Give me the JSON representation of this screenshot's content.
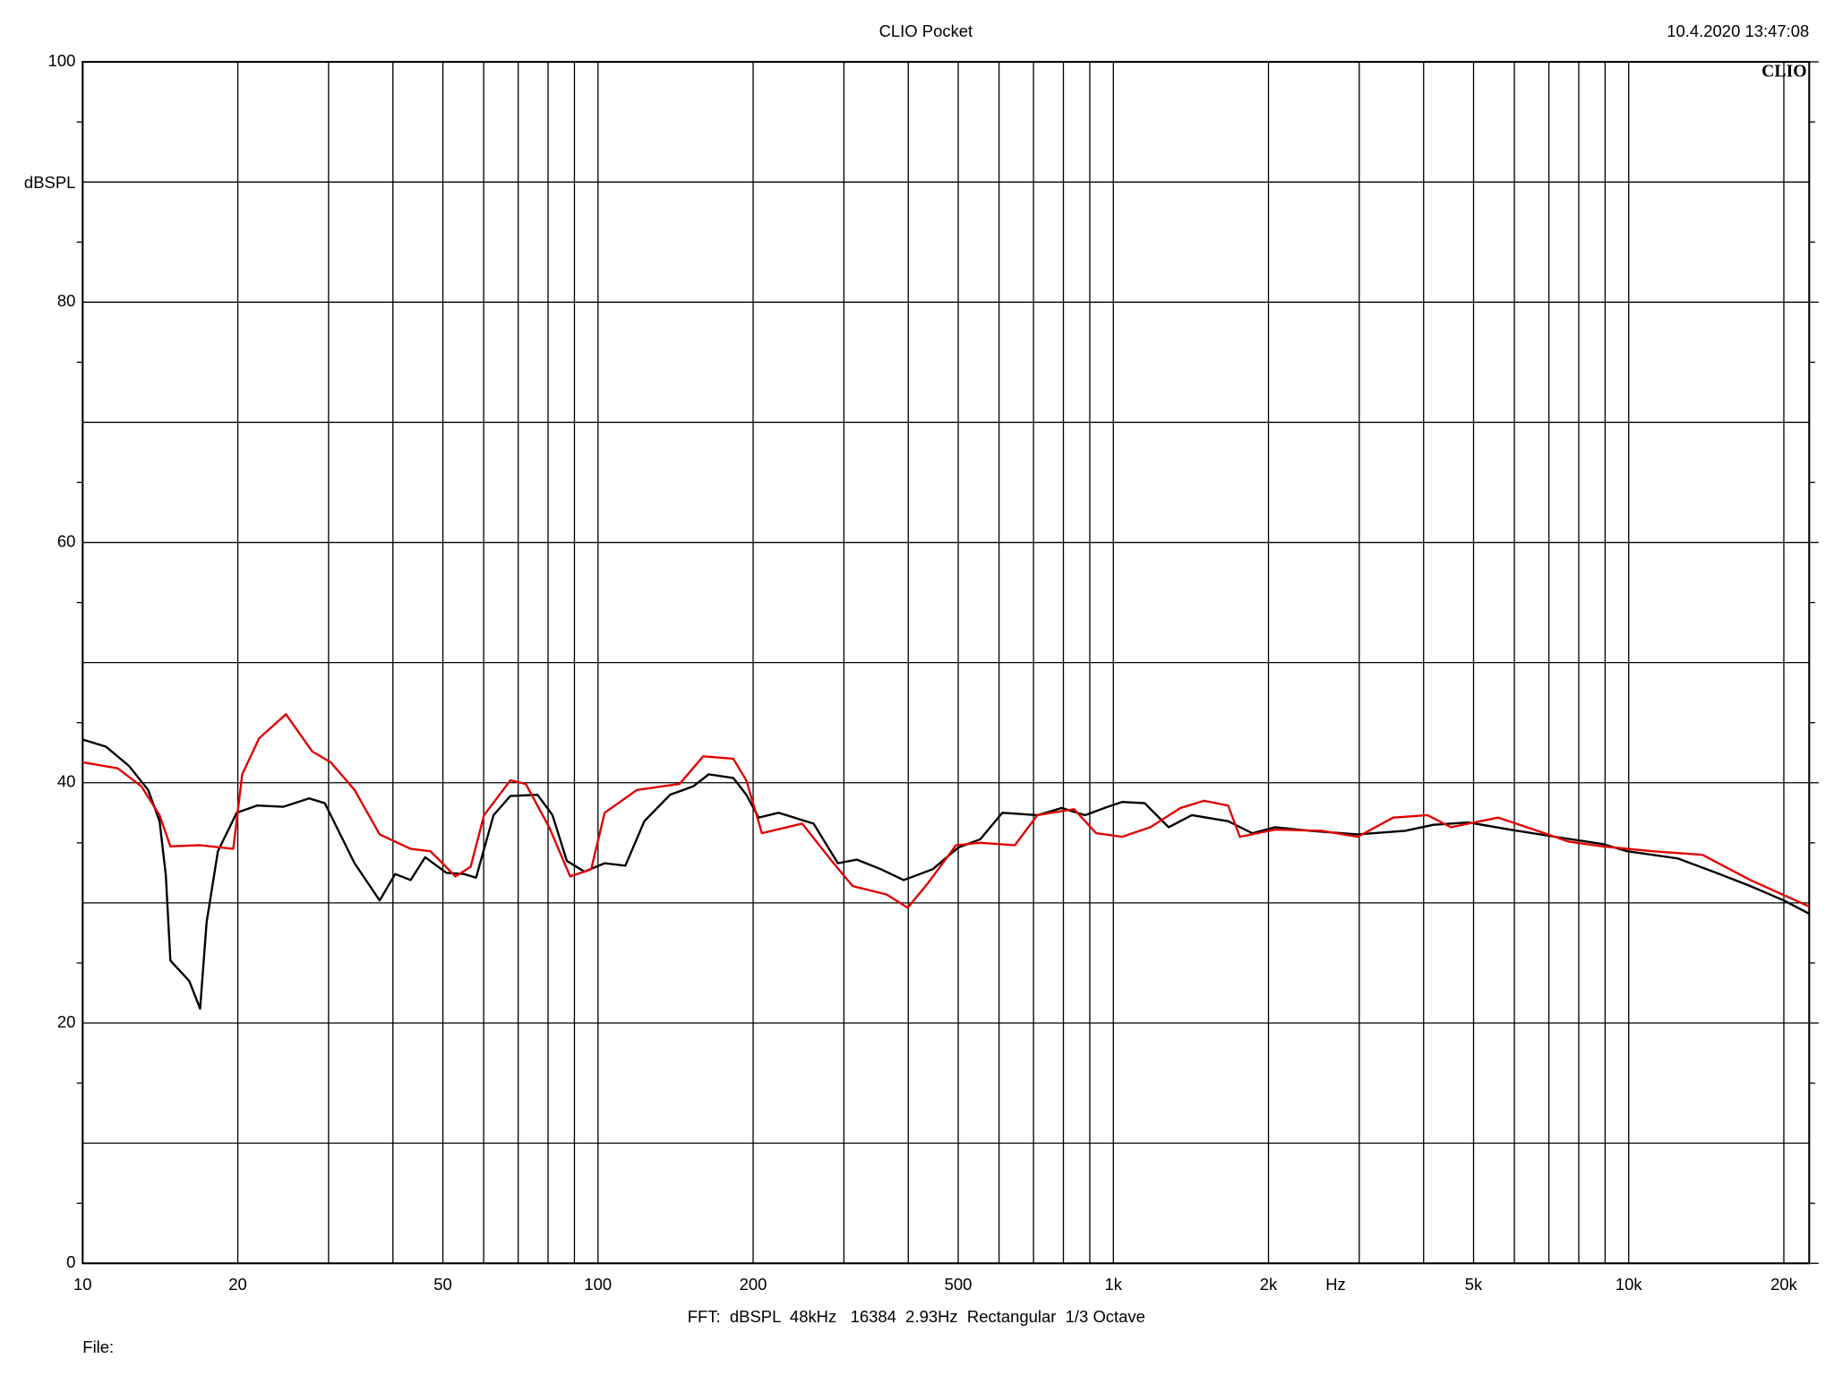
{
  "chart_data": {
    "type": "line",
    "title": "CLIO Pocket",
    "timestamp": "10.4.2020 13:47:08",
    "logo": "CLIO",
    "ylabel": "dBSPL",
    "xlabel": "Hz",
    "footer": "FFT:  dBSPL  48kHz   16384  2.93Hz  Rectangular  1/3 Octave",
    "file_label": "File:",
    "log_x": true,
    "grid": true,
    "xlim": [
      10,
      22400
    ],
    "ylim": [
      0,
      100
    ],
    "xticks": [
      10,
      20,
      50,
      100,
      200,
      500,
      {
        "value": 1000,
        "label": "1k"
      },
      {
        "value": 2000,
        "label": "2k"
      },
      {
        "value": 5000,
        "label": "5k"
      },
      {
        "value": 10000,
        "label": "10k"
      },
      {
        "value": 20000,
        "label": "20k"
      }
    ],
    "xgrid": [
      30,
      40,
      60,
      70,
      80,
      90,
      300,
      400,
      600,
      700,
      800,
      900,
      3000,
      4000,
      6000,
      7000,
      8000,
      9000
    ],
    "yticks": [
      0,
      20,
      40,
      60,
      80,
      100
    ],
    "ygrid": [
      10,
      30,
      50,
      70,
      90
    ],
    "yminor": [
      5,
      15,
      25,
      35,
      45,
      55,
      65,
      75,
      85,
      95
    ],
    "series": [
      {
        "color": "#000000",
        "x": [
          10,
          11.1,
          12.3,
          13.4,
          14.1,
          14.5,
          14.8,
          16.1,
          16.9,
          17.4,
          18.3,
          19.9,
          21.8,
          24.5,
          27.5,
          29.5,
          33.7,
          37.7,
          40.4,
          43.3,
          46.2,
          50.8,
          55,
          58,
          62.7,
          67.6,
          76.3,
          81.6,
          87,
          94.1,
          103,
          113,
          123,
          138,
          153,
          164,
          183,
          194,
          205,
          224,
          262,
          292,
          318,
          354,
          392,
          446,
          500,
          552,
          609,
          712,
          794,
          881,
          961,
          1040,
          1150,
          1280,
          1420,
          1670,
          1860,
          2060,
          2410,
          2980,
          3680,
          4180,
          4880,
          5880,
          7200,
          8900,
          9930,
          12450,
          14800,
          17230,
          20000,
          22400
        ],
        "values": [
          43.6,
          43.0,
          41.4,
          39.4,
          36.8,
          32.3,
          25.2,
          23.5,
          21.2,
          28.4,
          34.3,
          37.5,
          38.1,
          38.0,
          38.7,
          38.3,
          33.3,
          30.2,
          32.4,
          31.9,
          33.8,
          32.5,
          32.4,
          32.1,
          37.3,
          38.9,
          39.0,
          37.3,
          33.5,
          32.6,
          33.3,
          33.1,
          36.8,
          39.0,
          39.7,
          40.7,
          40.4,
          39.0,
          37.1,
          37.5,
          36.6,
          33.3,
          33.6,
          32.8,
          31.9,
          32.8,
          34.6,
          35.3,
          37.5,
          37.3,
          37.9,
          37.3,
          37.9,
          38.4,
          38.3,
          36.3,
          37.3,
          36.8,
          35.8,
          36.3,
          36.0,
          35.7,
          36.0,
          36.5,
          36.7,
          36.1,
          35.5,
          34.9,
          34.3,
          33.7,
          32.5,
          31.4,
          30.2,
          29.1
        ]
      },
      {
        "color": "#e00000",
        "x": [
          10,
          11.7,
          13,
          14.1,
          14.8,
          16.9,
          19.6,
          20.4,
          22,
          24.8,
          27.9,
          30.3,
          33.7,
          37.7,
          43.3,
          47.3,
          52.9,
          56.6,
          60.1,
          67.6,
          72.4,
          80.4,
          88.3,
          97,
          103,
          119,
          144,
          160,
          183,
          194,
          208,
          249,
          284,
          312,
          363,
          399,
          436,
          495,
          552,
          644,
          712,
          839,
          926,
          1040,
          1180,
          1350,
          1500,
          1670,
          1760,
          2060,
          2540,
          2980,
          3490,
          4070,
          4520,
          5580,
          6550,
          7650,
          8900,
          11100,
          13900,
          17230,
          22400
        ],
        "values": [
          41.7,
          41.2,
          39.7,
          37.3,
          34.7,
          34.8,
          34.5,
          40.7,
          43.7,
          45.7,
          42.6,
          41.7,
          39.4,
          35.7,
          34.5,
          34.3,
          32.2,
          33.0,
          37.3,
          40.2,
          39.9,
          36.3,
          32.2,
          32.8,
          37.5,
          39.4,
          39.9,
          42.2,
          42.0,
          40.2,
          35.8,
          36.6,
          33.5,
          31.4,
          30.7,
          29.6,
          31.6,
          34.8,
          35.0,
          34.8,
          37.3,
          37.8,
          35.8,
          35.5,
          36.3,
          37.9,
          38.5,
          38.1,
          35.5,
          36.1,
          36.0,
          35.5,
          37.1,
          37.3,
          36.3,
          37.1,
          36.1,
          35.1,
          34.7,
          34.3,
          34.0,
          31.9,
          29.7
        ]
      }
    ]
  }
}
